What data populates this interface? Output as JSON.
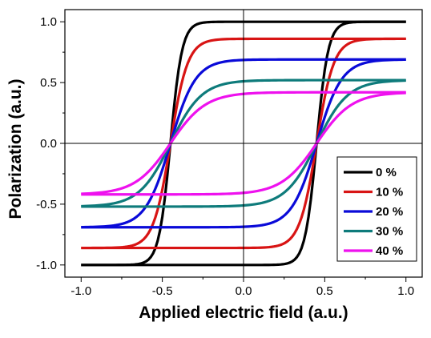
{
  "chart_data": {
    "type": "line",
    "title": "",
    "xlabel": "Applied electric field (a.u.)",
    "ylabel": "Polarization (a.u.)",
    "xlim": [
      -1.1,
      1.1
    ],
    "ylim": [
      -1.1,
      1.1
    ],
    "xticks": [
      "-1.0",
      "-0.5",
      "0.0",
      "0.5",
      "1.0"
    ],
    "yticks": [
      "1.0",
      "0.5",
      "0.0",
      "-0.5",
      "-1.0"
    ],
    "grid": false,
    "legend_position": "bottom-right",
    "series": [
      {
        "name": "0  %",
        "color": "#000000",
        "Ps": 1.0,
        "Ec": 0.45,
        "k": 14.0,
        "values_upper": [
          [
            1.0,
            1.0
          ],
          [
            0.5,
            0.97
          ],
          [
            0.0,
            0.9
          ],
          [
            -0.3,
            0.8
          ],
          [
            -0.45,
            0.0
          ],
          [
            -0.6,
            -0.8
          ],
          [
            -1.0,
            -1.0
          ]
        ],
        "values_lower": [
          [
            -1.0,
            -1.0
          ],
          [
            -0.5,
            -0.97
          ],
          [
            0.0,
            -0.9
          ],
          [
            0.3,
            -0.8
          ],
          [
            0.45,
            0.0
          ],
          [
            0.6,
            0.8
          ],
          [
            1.0,
            1.0
          ]
        ]
      },
      {
        "name": "10 %",
        "color": "#d81414",
        "Ps": 0.86,
        "Ec": 0.45,
        "k": 9.5,
        "values_upper": [
          [
            1.0,
            0.86
          ],
          [
            0.5,
            0.84
          ],
          [
            0.0,
            0.78
          ],
          [
            -0.45,
            0.0
          ],
          [
            -1.0,
            -0.86
          ]
        ],
        "values_lower": [
          [
            -1.0,
            -0.86
          ],
          [
            0.0,
            -0.78
          ],
          [
            0.45,
            0.0
          ],
          [
            1.0,
            0.86
          ]
        ]
      },
      {
        "name": "20 %",
        "color": "#0a0ad8",
        "Ps": 0.69,
        "Ec": 0.45,
        "k": 6.5,
        "values_upper": [
          [
            1.0,
            0.69
          ],
          [
            0.0,
            0.62
          ],
          [
            -0.45,
            0.0
          ],
          [
            -1.0,
            -0.69
          ]
        ],
        "values_lower": [
          [
            -1.0,
            -0.69
          ],
          [
            0.0,
            -0.62
          ],
          [
            0.45,
            0.0
          ],
          [
            1.0,
            0.69
          ]
        ]
      },
      {
        "name": "30 %",
        "color": "#0e7b7b",
        "Ps": 0.52,
        "Ec": 0.45,
        "k": 5.2,
        "values_upper": [
          [
            1.0,
            0.52
          ],
          [
            0.0,
            0.46
          ],
          [
            -0.45,
            0.0
          ],
          [
            -1.0,
            -0.52
          ]
        ],
        "values_lower": [
          [
            -1.0,
            -0.52
          ],
          [
            0.0,
            -0.46
          ],
          [
            0.45,
            0.0
          ],
          [
            1.0,
            0.52
          ]
        ]
      },
      {
        "name": "40 %",
        "color": "#ee11ee",
        "Ps": 0.42,
        "Ec": 0.45,
        "k": 4.6,
        "values_upper": [
          [
            1.0,
            0.42
          ],
          [
            0.0,
            0.37
          ],
          [
            -0.45,
            0.0
          ],
          [
            -1.0,
            -0.42
          ]
        ],
        "values_lower": [
          [
            -1.0,
            -0.42
          ],
          [
            0.0,
            -0.37
          ],
          [
            0.45,
            0.0
          ],
          [
            1.0,
            0.42
          ]
        ]
      }
    ]
  }
}
